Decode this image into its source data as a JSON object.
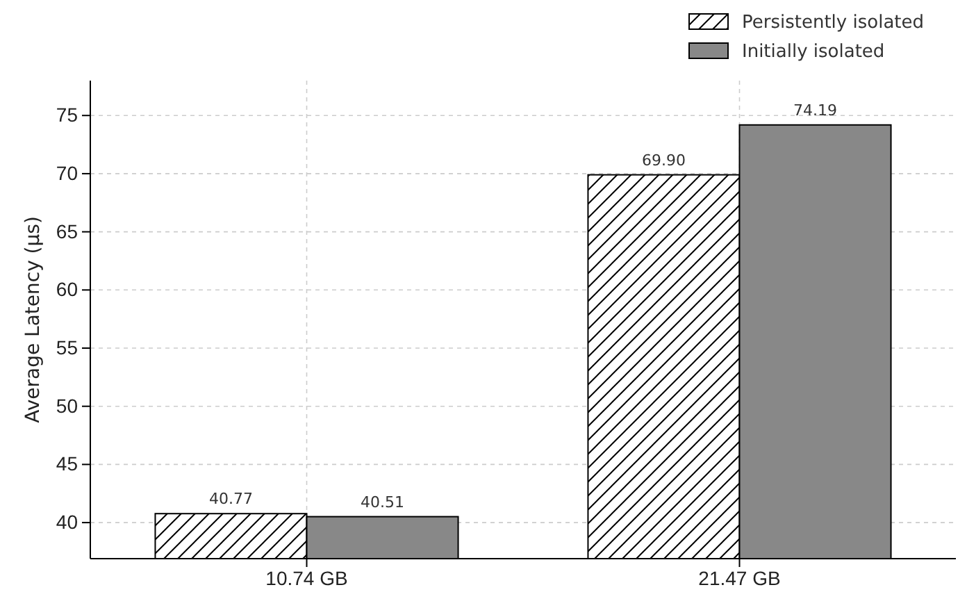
{
  "chart_data": {
    "type": "bar",
    "ylabel": "Average Latency (µs)",
    "categories": [
      "10.74 GB",
      "21.47 GB"
    ],
    "series": [
      {
        "name": "Persistently isolated",
        "color": "#000000",
        "values": [
          40.77,
          69.9
        ],
        "value_labels": [
          "40.77",
          "69.90"
        ]
      },
      {
        "name": "Initially isolated",
        "color": "#888888",
        "values": [
          40.51,
          74.19
        ],
        "value_labels": [
          "40.51",
          "74.19"
        ]
      }
    ],
    "ylim": [
      36.9,
      78
    ],
    "yticks": [
      40,
      45,
      50,
      55,
      60,
      65,
      70,
      75
    ],
    "grid": true,
    "legend": "top right"
  }
}
